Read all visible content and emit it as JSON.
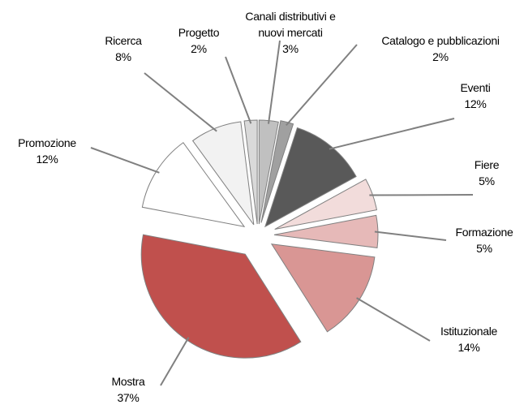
{
  "chart_data": {
    "type": "pie",
    "categories": [
      "Canali distributivi e nuovi mercati",
      "Catalogo e pubblicazioni",
      "Eventi",
      "Fiere",
      "Formazione",
      "Istituzionale",
      "Mostra",
      "Promozione",
      "Ricerca",
      "Progetto"
    ],
    "values": [
      3,
      2,
      12,
      5,
      5,
      14,
      37,
      12,
      8,
      2
    ],
    "value_labels": [
      "3%",
      "2%",
      "12%",
      "5%",
      "5%",
      "14%",
      "37%",
      "12%",
      "8%",
      "2%"
    ],
    "colors": [
      "#c0c0c0",
      "#a0a0a0",
      "#595959",
      "#f2dcdb",
      "#e6b9b8",
      "#d99694",
      "#c0504d",
      "#ffffff",
      "#f2f2f2",
      "#d9d9d9"
    ]
  }
}
